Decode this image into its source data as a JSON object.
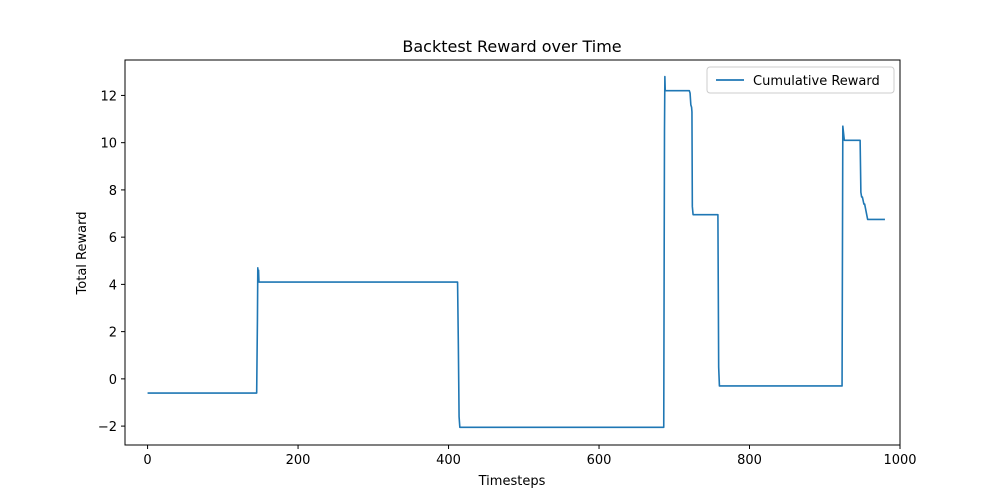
{
  "chart_data": {
    "type": "line",
    "title": "Backtest Reward over Time",
    "xlabel": "Timesteps",
    "ylabel": "Total Reward",
    "xlim": [
      -30,
      1000
    ],
    "ylim": [
      -2.8,
      13.5
    ],
    "xticks": [
      0,
      200,
      400,
      600,
      800,
      1000
    ],
    "yticks": [
      -2,
      0,
      2,
      4,
      6,
      8,
      10,
      12
    ],
    "xtick_labels": [
      "0",
      "200",
      "400",
      "600",
      "800",
      "1000"
    ],
    "ytick_labels": [
      "−2",
      "0",
      "2",
      "4",
      "6",
      "8",
      "10",
      "12"
    ],
    "grid": false,
    "legend_position": "top-right",
    "series": [
      {
        "name": "Cumulative Reward",
        "color": "#1f77b4",
        "x": [
          0,
          145,
          146,
          146.5,
          147,
          147.5,
          148,
          412,
          413,
          414,
          415,
          686,
          687,
          687.5,
          688,
          720,
          721,
          722,
          723,
          723.5,
          724,
          725,
          758,
          759,
          760,
          923,
          924,
          925,
          926,
          947,
          948,
          949,
          950,
          952,
          953,
          957,
          958,
          980
        ],
        "y": [
          -0.6,
          -0.6,
          2.5,
          4.7,
          4.1,
          4.6,
          4.1,
          4.1,
          1.5,
          -1.6,
          -2.05,
          -2.05,
          10.5,
          12.8,
          12.2,
          12.2,
          12.1,
          11.6,
          11.5,
          11.3,
          7.3,
          6.95,
          6.95,
          0.5,
          -0.3,
          -0.3,
          10.7,
          10.4,
          10.1,
          10.1,
          7.9,
          7.7,
          7.7,
          7.4,
          7.4,
          6.75,
          6.75,
          6.75
        ]
      }
    ]
  }
}
